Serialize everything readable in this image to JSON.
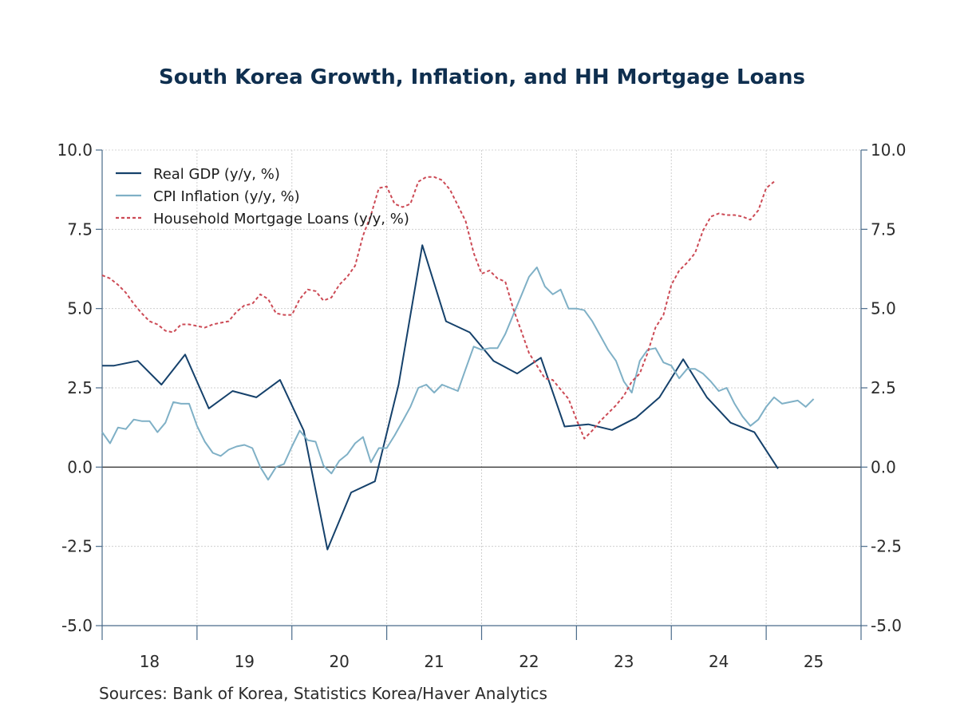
{
  "chart_data": {
    "type": "line",
    "title": "South Korea Growth, Inflation, and HH Mortgage Loans",
    "source": "Sources:  Bank of Korea, Statistics Korea/Haver Analytics",
    "ylim": [
      -5,
      10
    ],
    "yticks": [
      10.0,
      7.5,
      5.0,
      2.5,
      0.0,
      -2.5,
      -5.0
    ],
    "ytick_labels": [
      "10.0",
      "7.5",
      "5.0",
      "2.5",
      "0.0",
      "-2.5",
      "-5.0"
    ],
    "xlim": [
      2017.5,
      2025.5
    ],
    "x_categories": [
      {
        "label": "18",
        "center": 2018.0
      },
      {
        "label": "19",
        "center": 2019.0
      },
      {
        "label": "20",
        "center": 2020.0
      },
      {
        "label": "21",
        "center": 2021.0
      },
      {
        "label": "22",
        "center": 2022.0
      },
      {
        "label": "23",
        "center": 2023.0
      },
      {
        "label": "24",
        "center": 2024.0
      },
      {
        "label": "25",
        "center": 2025.0
      }
    ],
    "grid": true,
    "legend_position": "top-left",
    "series": [
      {
        "name": "Real GDP (y/y, %)",
        "color": "#15416b",
        "style": "solid",
        "x": [
          2017.5,
          2017.625,
          2017.875,
          2018.125,
          2018.375,
          2018.625,
          2018.875,
          2019.125,
          2019.375,
          2019.625,
          2019.875,
          2020.125,
          2020.375,
          2020.625,
          2020.875,
          2021.125,
          2021.375,
          2021.625,
          2021.875,
          2022.125,
          2022.375,
          2022.625,
          2022.875,
          2023.125,
          2023.375,
          2023.625,
          2023.875,
          2024.125,
          2024.375,
          2024.625,
          2024.875
        ],
        "y": [
          3.2,
          3.2,
          3.35,
          2.6,
          3.55,
          1.85,
          2.4,
          2.2,
          2.75,
          1.15,
          -2.6,
          -0.8,
          -0.45,
          2.6,
          7.0,
          4.6,
          4.25,
          3.35,
          2.95,
          3.45,
          1.28,
          1.35,
          1.17,
          1.55,
          2.2,
          3.4,
          2.2,
          1.4,
          1.1,
          -0.05,
          null
        ]
      },
      {
        "name": "CPI Inflation (y/y, %)",
        "color": "#7fb0c6",
        "style": "solid",
        "x": [
          2017.5,
          2017.583,
          2017.667,
          2017.75,
          2017.833,
          2017.917,
          2018.0,
          2018.083,
          2018.167,
          2018.25,
          2018.333,
          2018.417,
          2018.5,
          2018.583,
          2018.667,
          2018.75,
          2018.833,
          2018.917,
          2019.0,
          2019.083,
          2019.167,
          2019.25,
          2019.333,
          2019.417,
          2019.5,
          2019.583,
          2019.667,
          2019.75,
          2019.833,
          2019.917,
          2020.0,
          2020.083,
          2020.167,
          2020.25,
          2020.333,
          2020.417,
          2020.5,
          2020.583,
          2020.667,
          2020.75,
          2020.833,
          2020.917,
          2021.0,
          2021.083,
          2021.167,
          2021.25,
          2021.333,
          2021.417,
          2021.5,
          2021.583,
          2021.667,
          2021.75,
          2021.833,
          2021.917,
          2022.0,
          2022.083,
          2022.167,
          2022.25,
          2022.333,
          2022.417,
          2022.5,
          2022.583,
          2022.667,
          2022.75,
          2022.833,
          2022.917,
          2023.0,
          2023.083,
          2023.167,
          2023.25,
          2023.333,
          2023.417,
          2023.5,
          2023.583,
          2023.667,
          2023.75,
          2023.833,
          2023.917,
          2024.0,
          2024.083,
          2024.167,
          2024.25,
          2024.333,
          2024.417,
          2024.5,
          2024.583,
          2024.667,
          2024.75,
          2024.833,
          2024.917,
          2025.0,
          2025.083,
          2025.167,
          2025.25,
          2025.333
        ],
        "y": [
          1.1,
          0.75,
          1.25,
          1.2,
          1.5,
          1.45,
          1.45,
          1.1,
          1.4,
          2.05,
          2.0,
          2.0,
          1.3,
          0.8,
          0.45,
          0.35,
          0.55,
          0.65,
          0.7,
          0.6,
          0.0,
          -0.4,
          0.0,
          0.1,
          0.65,
          1.15,
          0.85,
          0.8,
          0.05,
          -0.2,
          0.2,
          0.4,
          0.75,
          0.95,
          0.15,
          0.6,
          0.6,
          1.0,
          1.45,
          1.9,
          2.5,
          2.6,
          2.35,
          2.6,
          2.5,
          2.4,
          3.1,
          3.8,
          3.7,
          3.75,
          3.75,
          4.2,
          4.8,
          5.4,
          6.0,
          6.3,
          5.7,
          5.45,
          5.6,
          5.0,
          5.0,
          4.95,
          4.6,
          4.15,
          3.7,
          3.35,
          2.7,
          2.35,
          3.35,
          3.7,
          3.75,
          3.3,
          3.2,
          2.8,
          3.1,
          3.1,
          2.95,
          2.7,
          2.4,
          2.5,
          2.0,
          1.6,
          1.3,
          1.5,
          1.9,
          2.2,
          2.0,
          2.05,
          2.1,
          1.9,
          2.15,
          null,
          null,
          null,
          null
        ]
      },
      {
        "name": "Household Mortgage Loans (y/y, %)",
        "color": "#cc4a55",
        "style": "dashed",
        "x": [
          2017.5,
          2017.583,
          2017.667,
          2017.75,
          2017.833,
          2017.917,
          2018.0,
          2018.083,
          2018.167,
          2018.25,
          2018.333,
          2018.417,
          2018.5,
          2018.583,
          2018.667,
          2018.75,
          2018.833,
          2018.917,
          2019.0,
          2019.083,
          2019.167,
          2019.25,
          2019.333,
          2019.417,
          2019.5,
          2019.583,
          2019.667,
          2019.75,
          2019.833,
          2019.917,
          2020.0,
          2020.083,
          2020.167,
          2020.25,
          2020.333,
          2020.417,
          2020.5,
          2020.583,
          2020.667,
          2020.75,
          2020.833,
          2020.917,
          2021.0,
          2021.083,
          2021.167,
          2021.25,
          2021.333,
          2021.417,
          2021.5,
          2021.583,
          2021.667,
          2021.75,
          2021.833,
          2021.917,
          2022.0,
          2022.083,
          2022.167,
          2022.25,
          2022.333,
          2022.417,
          2022.5,
          2022.583,
          2022.667,
          2022.75,
          2022.833,
          2022.917,
          2023.0,
          2023.083,
          2023.167,
          2023.25,
          2023.333,
          2023.417,
          2023.5,
          2023.583,
          2023.667,
          2023.75,
          2023.833,
          2023.917,
          2024.0,
          2024.083,
          2024.167,
          2024.25,
          2024.333,
          2024.417,
          2024.5,
          2024.583,
          2024.667,
          2024.75,
          2024.833,
          2024.917,
          2025.0
        ],
        "y": [
          6.05,
          5.95,
          5.75,
          5.5,
          5.15,
          4.85,
          4.6,
          4.5,
          4.3,
          4.25,
          4.5,
          4.5,
          4.45,
          4.4,
          4.5,
          4.55,
          4.6,
          4.9,
          5.1,
          5.15,
          5.45,
          5.3,
          4.85,
          4.8,
          4.8,
          5.3,
          5.6,
          5.55,
          5.25,
          5.35,
          5.75,
          6.0,
          6.35,
          7.3,
          7.95,
          8.8,
          8.85,
          8.3,
          8.2,
          8.3,
          9.0,
          9.15,
          9.15,
          9.05,
          8.75,
          8.25,
          7.75,
          6.75,
          6.1,
          6.2,
          5.95,
          5.85,
          5.0,
          4.3,
          3.6,
          3.2,
          2.8,
          2.75,
          2.45,
          2.15,
          1.5,
          0.9,
          1.15,
          1.45,
          1.7,
          1.95,
          2.25,
          2.7,
          2.95,
          3.6,
          4.4,
          4.8,
          5.75,
          6.2,
          6.45,
          6.75,
          7.45,
          7.9,
          8.0,
          7.95,
          7.95,
          7.9,
          7.8,
          8.1,
          8.8,
          9.0,
          null,
          null,
          null,
          null,
          null
        ]
      }
    ]
  }
}
